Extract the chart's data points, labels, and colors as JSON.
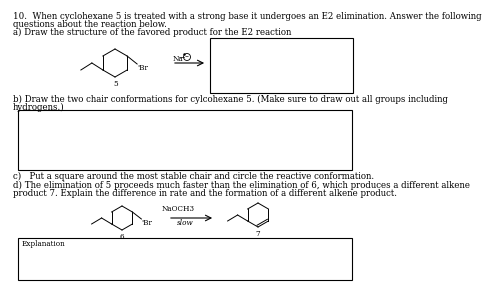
{
  "background": "#ffffff",
  "text_color": "#000000",
  "title_line1": "10.  When cyclohexane 5 is treated with a strong base it undergoes an E2 elimination. Answer the following",
  "title_line2": "questions about the reaction below.",
  "part_a_text": "a) Draw the structure of the favored product for the E2 reaction",
  "part_b_line1": "b) Draw the two chair conformations for cylcohexane 5. (Make sure to draw out all groups including",
  "part_b_line2": "hydrogens.)",
  "part_c_text": "c)   Put a square around the most stable chair and circle the reactive conformation.",
  "part_d_line1": "d) The elimination of 5 proceeds much faster than the elimination of 6, which produces a different alkene",
  "part_d_line2": "product 7. Explain the difference in rate and the formation of a different alkene product.",
  "explanation_label": "Explanation",
  "slow_label": "slow",
  "naoch3_label": "NaOCH3",
  "na_label": "Na",
  "label_5": "5",
  "label_6": "6",
  "label_7": "7",
  "br_label": "'Br",
  "font_size": 6.2,
  "font_size_small": 5.5,
  "font_size_chem": 5.2
}
